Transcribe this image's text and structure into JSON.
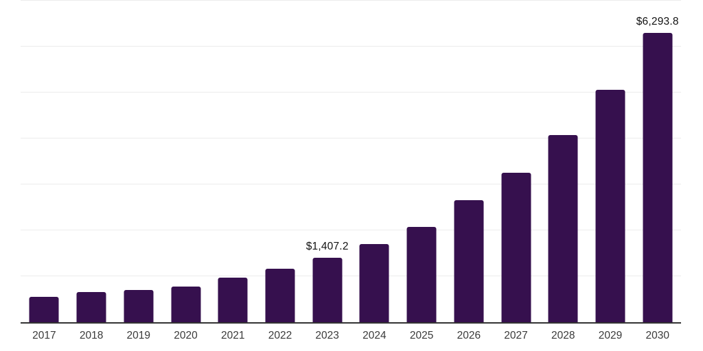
{
  "chart_data": {
    "type": "bar",
    "title": "",
    "xlabel": "",
    "ylabel": "",
    "categories": [
      "2017",
      "2018",
      "2019",
      "2020",
      "2021",
      "2022",
      "2023",
      "2024",
      "2025",
      "2026",
      "2027",
      "2028",
      "2029",
      "2030"
    ],
    "values": [
      550,
      650,
      706,
      778,
      970,
      1170,
      1407.2,
      1705,
      2080,
      2655,
      3260,
      4075,
      5055,
      6293.8
    ],
    "value_labels": [
      "",
      "",
      "",
      "",
      "",
      "",
      "$1,407.2",
      "",
      "",
      "",
      "",
      "",
      "",
      "$6,293.8"
    ],
    "ylim": [
      0,
      7000
    ],
    "gridline_interval": 1000,
    "grid": "horizontal-only",
    "legend": "none",
    "colors": {
      "bar": "#36104E",
      "axis_line": "#333333",
      "gridline": "#ececec",
      "tick_label": "#3a3a3a",
      "value_label": "#111111",
      "background": "#ffffff"
    }
  }
}
